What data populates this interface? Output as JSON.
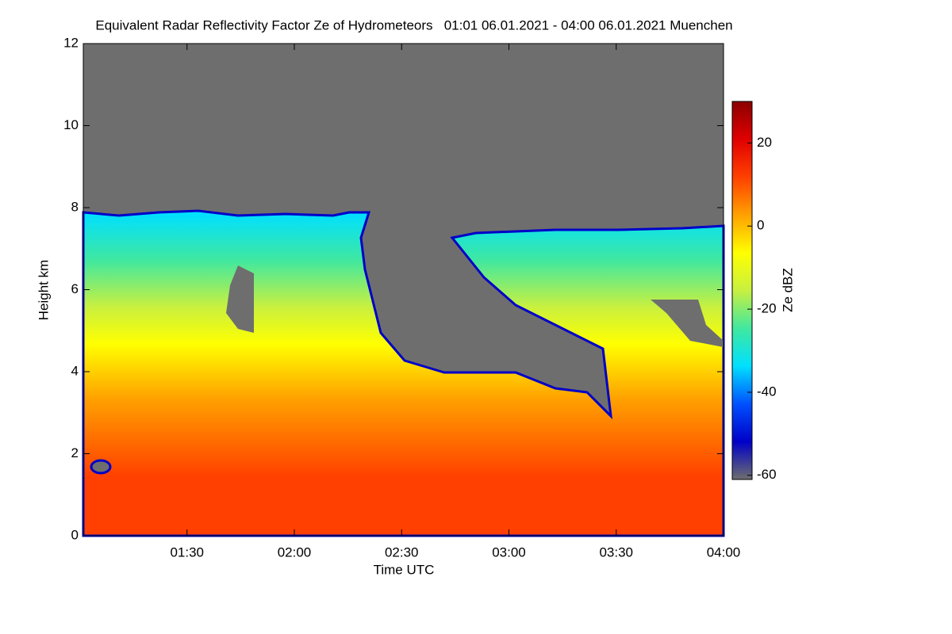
{
  "chart_data": {
    "type": "heatmap",
    "title": "Equivalent Radar Reflectivity Factor Ze of Hydrometeors   01:01 06.01.2021 - 04:00 06.01.2021 Muenchen",
    "x_label": "Time UTC",
    "y_label": "Height km",
    "xlim": [
      61,
      240
    ],
    "xticks": [
      {
        "value": 90,
        "label": "01:30"
      },
      {
        "value": 120,
        "label": "02:00"
      },
      {
        "value": 150,
        "label": "02:30"
      },
      {
        "value": 180,
        "label": "03:00"
      },
      {
        "value": 210,
        "label": "03:30"
      },
      {
        "value": 240,
        "label": "04:00"
      }
    ],
    "ylim": [
      0,
      12
    ],
    "yticks": [
      0,
      2,
      4,
      6,
      8,
      10,
      12
    ],
    "colorbar": {
      "label": "Ze dBZ",
      "lim": [
        -61,
        30
      ],
      "ticks": [
        -60,
        -40,
        -20,
        0,
        20
      ],
      "colors": [
        "#6e6e6e",
        "#0000c8",
        "#0050ff",
        "#00e0ff",
        "#40e8a0",
        "#c8f040",
        "#ffff00",
        "#ffa000",
        "#ff4000",
        "#e00000",
        "#8b0000"
      ]
    }
  }
}
